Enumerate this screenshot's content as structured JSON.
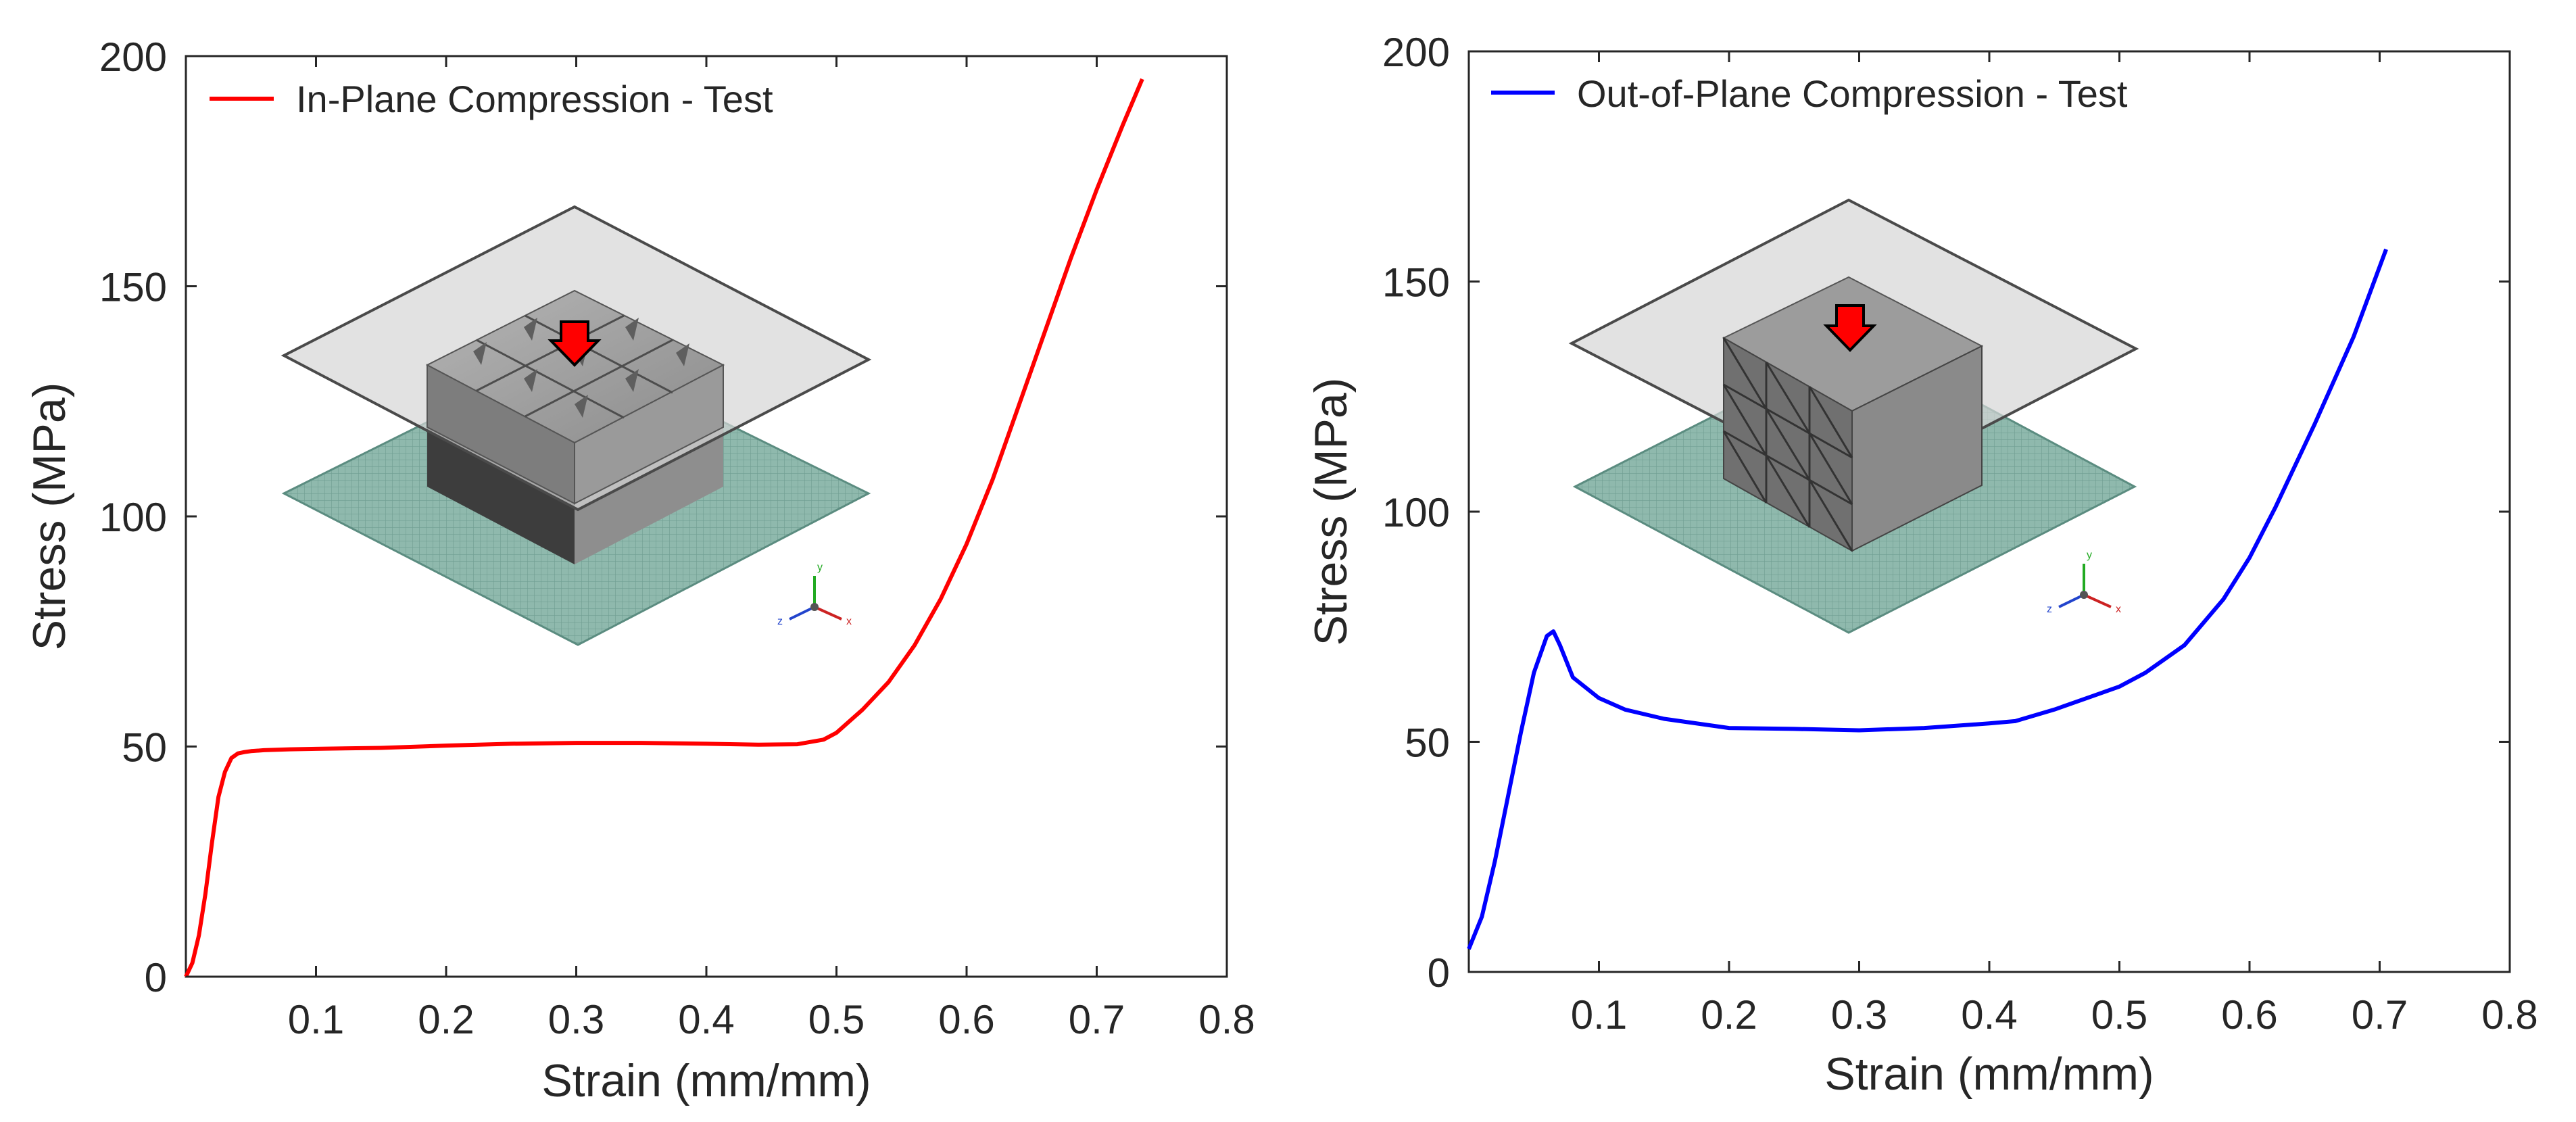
{
  "chart_data": [
    {
      "type": "line",
      "xlabel": "Strain (mm/mm)",
      "ylabel": "Stress (MPa)",
      "xlim": [
        0,
        0.8
      ],
      "ylim": [
        0,
        200
      ],
      "xticks": [
        "0.1",
        "0.2",
        "0.3",
        "0.4",
        "0.5",
        "0.6",
        "0.7",
        "0.8"
      ],
      "yticks": [
        "0",
        "50",
        "100",
        "150",
        "200"
      ],
      "grid": false,
      "legend_position": "top-left",
      "series": [
        {
          "name": "In-Plane Compression - Test",
          "color": "#ff0000",
          "x": [
            0,
            0.005,
            0.01,
            0.015,
            0.02,
            0.025,
            0.03,
            0.035,
            0.04,
            0.045,
            0.05,
            0.06,
            0.08,
            0.1,
            0.15,
            0.2,
            0.25,
            0.3,
            0.35,
            0.4,
            0.44,
            0.47,
            0.49,
            0.5,
            0.52,
            0.54,
            0.56,
            0.58,
            0.6,
            0.62,
            0.64,
            0.66,
            0.68,
            0.7,
            0.72,
            0.735
          ],
          "y": [
            0,
            3,
            9,
            18,
            29,
            39,
            44.5,
            47.5,
            48.5,
            48.8,
            49,
            49.2,
            49.4,
            49.5,
            49.7,
            50.2,
            50.6,
            50.8,
            50.8,
            50.6,
            50.4,
            50.5,
            51.5,
            53,
            58,
            64,
            72,
            82,
            94,
            108,
            124,
            140,
            156,
            171,
            185,
            195
          ]
        }
      ]
    },
    {
      "type": "line",
      "xlabel": "Strain (mm/mm)",
      "ylabel": "Stress (MPa)",
      "xlim": [
        0,
        0.8
      ],
      "ylim": [
        0,
        200
      ],
      "xticks": [
        "0.1",
        "0.2",
        "0.3",
        "0.4",
        "0.5",
        "0.6",
        "0.7",
        "0.8"
      ],
      "yticks": [
        "0",
        "50",
        "100",
        "150",
        "200"
      ],
      "grid": false,
      "legend_position": "top-left",
      "series": [
        {
          "name": "Out-of-Plane Compression - Test",
          "color": "#0000ff",
          "x": [
            0,
            0.01,
            0.02,
            0.03,
            0.04,
            0.05,
            0.06,
            0.065,
            0.07,
            0.08,
            0.1,
            0.12,
            0.15,
            0.2,
            0.25,
            0.3,
            0.35,
            0.4,
            0.42,
            0.45,
            0.48,
            0.5,
            0.52,
            0.55,
            0.58,
            0.6,
            0.62,
            0.65,
            0.68,
            0.705
          ],
          "y": [
            5,
            12,
            24,
            38,
            52,
            65,
            73,
            74,
            71,
            64,
            59.5,
            57,
            55,
            53,
            52.8,
            52.5,
            53,
            54,
            54.5,
            57,
            60,
            62,
            65,
            71,
            81,
            90,
            101,
            119,
            138,
            157
          ]
        }
      ]
    }
  ],
  "insets": [
    {
      "axes": [
        {
          "label": "y",
          "color": "#22aa22"
        },
        {
          "label": "x",
          "color": "#cc2222"
        },
        {
          "label": "z",
          "color": "#2244cc"
        }
      ]
    },
    {
      "axes": [
        {
          "label": "y",
          "color": "#22aa22"
        },
        {
          "label": "x",
          "color": "#cc2222"
        },
        {
          "label": "z",
          "color": "#2244cc"
        }
      ]
    }
  ]
}
